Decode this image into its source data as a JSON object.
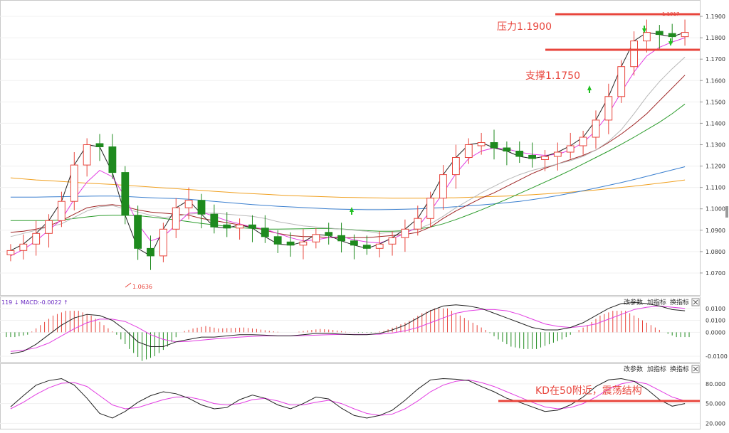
{
  "chart_data": [
    {
      "type": "candlestick",
      "instrument": "EUR/USD",
      "panel": "price",
      "y_ticks": [
        "1.1900",
        "1.1800",
        "1.1700",
        "1.1600",
        "1.1500",
        "1.1400",
        "1.1300",
        "1.1200",
        "1.1100",
        "1.1000",
        "1.0900",
        "1.0800",
        "1.0700"
      ],
      "ylim": [
        1.062,
        1.195
      ],
      "low_marker": "1.0636",
      "high_marker": "1.1917",
      "annotations": [
        {
          "text": "压力1.1900",
          "level": 1.19
        },
        {
          "text": "支撑1.1750",
          "level": 1.175
        }
      ],
      "colors": {
        "up": "#e8453c",
        "down": "#1e8a1e",
        "ma1": "#222222",
        "ma2": "#e23ee2",
        "ma3": "#b8b8b8",
        "ma4": "#9e2424",
        "ma5": "#2c9c2c",
        "ma6": "#3a7fcf",
        "ma7": "#f0a020",
        "annotation": "#e8453c",
        "arrow_up": "#22c022",
        "arrow_down": "#22c022"
      },
      "moving_averages": [
        {
          "values": [
            1.0805,
            1.0835,
            1.0885,
            1.0945,
            1.1035,
            1.1205,
            1.13,
            1.129,
            1.117,
            1.097,
            1.0815,
            1.078,
            1.0905,
            1.1005,
            1.104,
            1.0975,
            1.0915,
            1.091,
            1.0925,
            1.091,
            1.087,
            1.0835,
            1.083,
            1.0845,
            1.088,
            1.0875,
            1.085,
            1.083,
            1.0815,
            1.0835,
            1.0865,
            1.0905,
            1.0955,
            1.105,
            1.116,
            1.124,
            1.13,
            1.131,
            1.1285,
            1.127,
            1.1245,
            1.1235,
            1.1245,
            1.1265,
            1.1295,
            1.1335,
            1.1415,
            1.1525,
            1.1665,
            1.1785,
            1.1825,
            1.1815,
            1.1805,
            1.1825
          ]
        },
        {
          "values": [
            1.078,
            1.081,
            1.085,
            1.09,
            1.095,
            1.1045,
            1.1125,
            1.118,
            1.115,
            1.1055,
            1.093,
            1.085,
            1.087,
            1.0925,
            1.098,
            1.0985,
            1.0965,
            1.0945,
            1.093,
            1.0915,
            1.0905,
            1.0885,
            1.0865,
            1.085,
            1.0855,
            1.0865,
            1.087,
            1.0855,
            1.0845,
            1.084,
            1.086,
            1.0885,
            1.0915,
            1.099,
            1.1075,
            1.1165,
            1.1235,
            1.127,
            1.1285,
            1.128,
            1.1265,
            1.1255,
            1.125,
            1.1255,
            1.1275,
            1.131,
            1.1365,
            1.1445,
            1.1545,
            1.164,
            1.1715,
            1.1755,
            1.178,
            1.18
          ]
        },
        {
          "values": [
            1.087,
            1.0885,
            1.09,
            1.0915,
            1.093,
            1.096,
            1.099,
            1.101,
            1.1015,
            1.1,
            1.0985,
            1.097,
            1.096,
            1.0965,
            1.0975,
            1.098,
            1.098,
            1.0975,
            1.097,
            1.0965,
            1.0955,
            1.094,
            1.093,
            1.092,
            1.0915,
            1.091,
            1.0905,
            1.09,
            1.0895,
            1.0885,
            1.089,
            1.0895,
            1.0905,
            1.093,
            1.0965,
            1.1005,
            1.104,
            1.1075,
            1.1105,
            1.1135,
            1.116,
            1.118,
            1.1195,
            1.121,
            1.1225,
            1.1245,
            1.1275,
            1.1315,
            1.137,
            1.1445,
            1.1525,
            1.1595,
            1.1655,
            1.171
          ]
        },
        {
          "values": [
            1.089,
            1.0895,
            1.0905,
            1.092,
            1.0945,
            1.0975,
            1.1005,
            1.1015,
            1.102,
            1.101,
            1.0995,
            1.0985,
            1.098,
            1.0975,
            1.097,
            1.0955,
            1.0945,
            1.0935,
            1.0925,
            1.0915,
            1.09,
            1.0885,
            1.0875,
            1.087,
            1.087,
            1.0865,
            1.0865,
            1.0865,
            1.0865,
            1.087,
            1.0875,
            1.088,
            1.089,
            1.0915,
            1.0955,
            1.099,
            1.102,
            1.105,
            1.1075,
            1.1105,
            1.1135,
            1.1165,
            1.119,
            1.121,
            1.123,
            1.125,
            1.1275,
            1.131,
            1.135,
            1.1395,
            1.1445,
            1.1505,
            1.1565,
            1.1625
          ]
        },
        {
          "values": [
            1.0945,
            1.0945,
            1.0945,
            1.0945,
            1.0948,
            1.0955,
            1.0962,
            1.0968,
            1.097,
            1.097,
            1.0968,
            1.0962,
            1.0955,
            1.0948,
            1.094,
            1.0932,
            1.0925,
            1.0918,
            1.0912,
            1.0908,
            1.0905,
            1.0905,
            1.0906,
            1.0907,
            1.0908,
            1.0908,
            1.0906,
            1.0902,
            1.0898,
            1.0895,
            1.0895,
            1.0898,
            1.0905,
            1.0915,
            1.093,
            1.095,
            1.0972,
            1.0995,
            1.102,
            1.1045,
            1.1072,
            1.1098,
            1.1125,
            1.1152,
            1.118,
            1.121,
            1.124,
            1.127,
            1.1302,
            1.1335,
            1.137,
            1.1405,
            1.1445,
            1.149
          ]
        },
        {
          "values": [
            1.1055,
            1.1055,
            1.1055,
            1.1056,
            1.1057,
            1.1058,
            1.1059,
            1.106,
            1.106,
            1.1058,
            1.1055,
            1.1052,
            1.105,
            1.1048,
            1.1045,
            1.104,
            1.1035,
            1.103,
            1.1025,
            1.102,
            1.1016,
            1.1012,
            1.1009,
            1.1006,
            1.1003,
            1.1,
            1.0998,
            1.0997,
            1.0996,
            1.0996,
            1.0997,
            1.0998,
            1.1,
            1.1003,
            1.1006,
            1.101,
            1.1014,
            1.1018,
            1.1023,
            1.1029,
            1.1035,
            1.1043,
            1.1052,
            1.1062,
            1.1073,
            1.1085,
            1.1097,
            1.111,
            1.1123,
            1.1137,
            1.1152,
            1.1167,
            1.1182,
            1.1197
          ]
        },
        {
          "values": [
            1.1145,
            1.114,
            1.1135,
            1.1132,
            1.1128,
            1.1124,
            1.112,
            1.1117,
            1.1114,
            1.111,
            1.1106,
            1.1102,
            1.1098,
            1.1094,
            1.109,
            1.1086,
            1.1082,
            1.1078,
            1.1074,
            1.1071,
            1.1068,
            1.1065,
            1.1062,
            1.106,
            1.1058,
            1.1056,
            1.1054,
            1.1053,
            1.1052,
            1.1051,
            1.105,
            1.105,
            1.105,
            1.105,
            1.1051,
            1.1052,
            1.1054,
            1.1056,
            1.1058,
            1.106,
            1.1063,
            1.1066,
            1.107,
            1.1074,
            1.1078,
            1.1083,
            1.1088,
            1.1094,
            1.11,
            1.1106,
            1.1113,
            1.112,
            1.1127,
            1.1135
          ]
        }
      ]
    },
    {
      "type": "macd",
      "panel": "MACD",
      "label": "119 ↓ MACD:-0.0022 ↑",
      "y_ticks": [
        "0.0100",
        "0.0100",
        "0.0000",
        "-0.0100"
      ],
      "buttons": [
        "改参数",
        "加指标",
        "换指标"
      ],
      "dif": [
        -0.009,
        -0.008,
        -0.005,
        -0.001,
        0.003,
        0.006,
        0.0075,
        0.007,
        0.005,
        0.001,
        -0.004,
        -0.006,
        -0.006,
        -0.004,
        -0.003,
        -0.002,
        -0.002,
        -0.0015,
        -0.001,
        -0.001,
        -0.0012,
        -0.0015,
        -0.0015,
        -0.001,
        -0.0005,
        -0.0005,
        -0.0008,
        -0.001,
        -0.001,
        -0.0005,
        0.001,
        0.003,
        0.006,
        0.009,
        0.011,
        0.0115,
        0.011,
        0.01,
        0.008,
        0.006,
        0.004,
        0.002,
        0.001,
        0.001,
        0.002,
        0.004,
        0.007,
        0.01,
        0.012,
        0.0125,
        0.012,
        0.011,
        0.0095,
        0.009
      ],
      "dea": [
        -0.008,
        -0.0075,
        -0.0065,
        -0.0045,
        -0.0015,
        0.0015,
        0.004,
        0.0055,
        0.0055,
        0.0045,
        0.002,
        -0.001,
        -0.003,
        -0.004,
        -0.0038,
        -0.0033,
        -0.0028,
        -0.0024,
        -0.002,
        -0.0017,
        -0.0015,
        -0.0015,
        -0.0015,
        -0.0014,
        -0.0012,
        -0.001,
        -0.0009,
        -0.0009,
        -0.0009,
        -0.0008,
        -0.0003,
        0.0006,
        0.002,
        0.004,
        0.006,
        0.008,
        0.009,
        0.0095,
        0.0095,
        0.009,
        0.0075,
        0.0055,
        0.0035,
        0.0025,
        0.002,
        0.0025,
        0.0035,
        0.0055,
        0.0075,
        0.0095,
        0.0105,
        0.011,
        0.0105,
        0.01
      ]
    },
    {
      "type": "line",
      "panel": "KD",
      "y_ticks": [
        "80.000",
        "50.000",
        "20.000"
      ],
      "ylim": [
        15,
        95
      ],
      "buttons": [
        "改参数",
        "加指标",
        "换指标"
      ],
      "annotation": {
        "text": "KD在50附近，震荡结构",
        "level": 51
      },
      "k": [
        45,
        62,
        78,
        85,
        88,
        78,
        58,
        35,
        28,
        38,
        52,
        62,
        68,
        65,
        58,
        48,
        42,
        44,
        56,
        63,
        58,
        48,
        42,
        50,
        60,
        57,
        43,
        32,
        28,
        32,
        40,
        55,
        72,
        86,
        88,
        87,
        85,
        76,
        68,
        58,
        52,
        45,
        38,
        40,
        48,
        60,
        76,
        86,
        88,
        84,
        72,
        56,
        46,
        50
      ],
      "d": [
        42,
        52,
        64,
        74,
        81,
        82,
        76,
        62,
        48,
        42,
        44,
        50,
        56,
        60,
        60,
        56,
        50,
        48,
        50,
        56,
        58,
        54,
        48,
        48,
        52,
        55,
        50,
        42,
        35,
        32,
        34,
        42,
        54,
        68,
        78,
        84,
        86,
        82,
        76,
        68,
        60,
        52,
        45,
        42,
        44,
        50,
        60,
        72,
        80,
        84,
        80,
        70,
        60,
        54
      ]
    }
  ]
}
